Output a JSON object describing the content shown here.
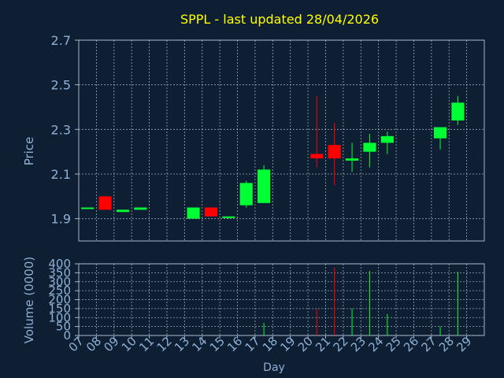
{
  "chart_data": {
    "type": "candlestick",
    "title": "SPPL - last updated 28/04/2026",
    "xlabel": "Day",
    "price_panel": {
      "ylabel": "Price",
      "ylim": [
        1.8,
        2.7
      ],
      "yticks": [
        "1.9",
        "2.1",
        "2.3",
        "2.5",
        "2.7"
      ],
      "grid": true
    },
    "volume_panel": {
      "ylabel": "Volume (0000)",
      "ylim": [
        0,
        400
      ],
      "yticks": [
        "0",
        "50",
        "100",
        "150",
        "200",
        "250",
        "300",
        "350",
        "400"
      ],
      "grid": true
    },
    "x_ticks": [
      "07",
      "08",
      "09",
      "10",
      "11",
      "12",
      "13",
      "14",
      "15",
      "16",
      "17",
      "18",
      "19",
      "20",
      "21",
      "22",
      "23",
      "24",
      "25",
      "26",
      "27",
      "28",
      "29"
    ],
    "colors": {
      "up": "#00ff33",
      "down": "#ff0000",
      "background": "#0f1f33",
      "title": "#ffff00",
      "axis_text": "#8fb0d4"
    },
    "candles": [
      {
        "day": "07",
        "open": 1.95,
        "high": 1.95,
        "low": 1.95,
        "close": 1.95,
        "volume": 0
      },
      {
        "day": "08",
        "open": 2.0,
        "high": 2.0,
        "low": 1.94,
        "close": 1.94,
        "volume": 0
      },
      {
        "day": "09",
        "open": 1.93,
        "high": 1.94,
        "low": 1.93,
        "close": 1.94,
        "volume": 0
      },
      {
        "day": "10",
        "open": 1.94,
        "high": 1.95,
        "low": 1.94,
        "close": 1.95,
        "volume": 0
      },
      {
        "day": "13",
        "open": 1.9,
        "high": 1.95,
        "low": 1.9,
        "close": 1.95,
        "volume": 0
      },
      {
        "day": "14",
        "open": 1.95,
        "high": 1.95,
        "low": 1.91,
        "close": 1.91,
        "volume": 0
      },
      {
        "day": "15",
        "open": 1.91,
        "high": 1.91,
        "low": 1.9,
        "close": 1.91,
        "volume": 0
      },
      {
        "day": "16",
        "open": 1.96,
        "high": 2.07,
        "low": 1.95,
        "close": 2.06,
        "volume": 0
      },
      {
        "day": "17",
        "open": 1.97,
        "high": 2.14,
        "low": 1.97,
        "close": 2.12,
        "volume": 70
      },
      {
        "day": "20",
        "open": 2.19,
        "high": 2.45,
        "low": 2.13,
        "close": 2.17,
        "volume": 150
      },
      {
        "day": "21",
        "open": 2.23,
        "high": 2.33,
        "low": 2.05,
        "close": 2.17,
        "volume": 380
      },
      {
        "day": "22",
        "open": 2.16,
        "high": 2.24,
        "low": 2.11,
        "close": 2.17,
        "volume": 150
      },
      {
        "day": "23",
        "open": 2.2,
        "high": 2.28,
        "low": 2.13,
        "close": 2.24,
        "volume": 360
      },
      {
        "day": "24",
        "open": 2.24,
        "high": 2.29,
        "low": 2.19,
        "close": 2.27,
        "volume": 120
      },
      {
        "day": "27",
        "open": 2.26,
        "high": 2.31,
        "low": 2.21,
        "close": 2.31,
        "volume": 50
      },
      {
        "day": "28",
        "open": 2.34,
        "high": 2.45,
        "low": 2.32,
        "close": 2.42,
        "volume": 355
      }
    ]
  }
}
